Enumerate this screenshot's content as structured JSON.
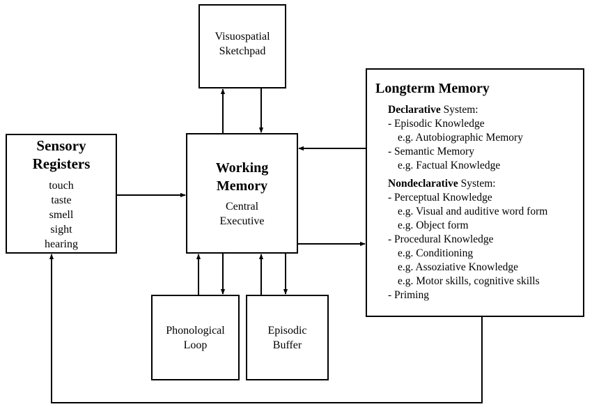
{
  "sensory_registers": {
    "title_line1": "Sensory",
    "title_line2": "Registers",
    "items": [
      "touch",
      "taste",
      "smell",
      "sight",
      "hearing"
    ]
  },
  "working_memory": {
    "title_line1": "Working",
    "title_line2": "Memory",
    "sub_line1": "Central",
    "sub_line2": "Executive"
  },
  "visuospatial": {
    "line1": "Visuospatial",
    "line2": "Sketchpad"
  },
  "phonological": {
    "line1": "Phonological",
    "line2": "Loop"
  },
  "episodic_buffer": {
    "line1": "Episodic",
    "line2": "Buffer"
  },
  "longterm_memory": {
    "title": "Longterm Memory",
    "declarative_bold": "Declarative",
    "declarative_rest": " System:",
    "episodic_knowledge": "- Episodic Knowledge",
    "episodic_example": "e.g. Autobiographic Memory",
    "semantic_memory": "- Semantic Memory",
    "semantic_example": "e.g. Factual Knowledge",
    "nondeclarative_bold": "Nondeclarative",
    "nondeclarative_rest": " System:",
    "perceptual_knowledge": "- Perceptual Knowledge",
    "perceptual_example1": "e.g. Visual and auditive word form",
    "perceptual_example2": "e.g. Object form",
    "procedural_knowledge": "- Procedural Knowledge",
    "procedural_example1": "e.g. Conditioning",
    "procedural_example2": "e.g. Assoziative Knowledge",
    "procedural_example3": "e.g. Motor skills, cognitive skills",
    "priming": "- Priming"
  }
}
